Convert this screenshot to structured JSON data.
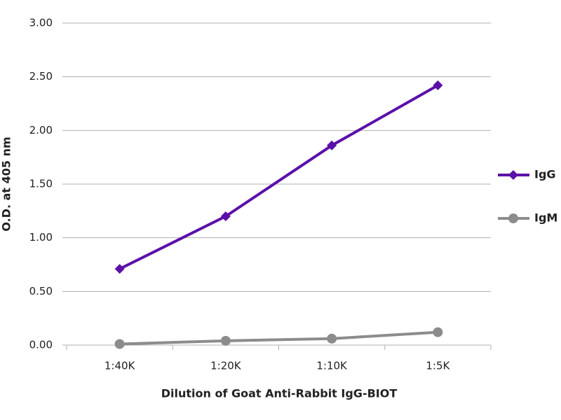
{
  "chart_data": {
    "type": "line",
    "x_label": "Dilution of Goat Anti-Rabbit IgG-BIOT",
    "y_label": "O.D. at 405 nm",
    "categories": [
      "1:40K",
      "1:20K",
      "1:10K",
      "1:5K"
    ],
    "series": [
      {
        "name": "IgG",
        "color": "#5b10a8",
        "marker": "diamond",
        "values": [
          0.71,
          1.2,
          1.86,
          2.42
        ]
      },
      {
        "name": "IgM",
        "color": "#8c8c8c",
        "marker": "circle",
        "values": [
          0.01,
          0.04,
          0.06,
          0.12
        ]
      }
    ],
    "ylim": [
      0,
      3
    ],
    "yticks": [
      {
        "value": 0,
        "label": "0.00"
      },
      {
        "value": 0.5,
        "label": "0.50"
      },
      {
        "value": 1,
        "label": "1.00"
      },
      {
        "value": 1.5,
        "label": "1.50"
      },
      {
        "value": 2,
        "label": "2.00"
      },
      {
        "value": 2.5,
        "label": "2.50"
      },
      {
        "value": 3,
        "label": "3.00"
      }
    ],
    "grid": true,
    "legend": "right"
  }
}
